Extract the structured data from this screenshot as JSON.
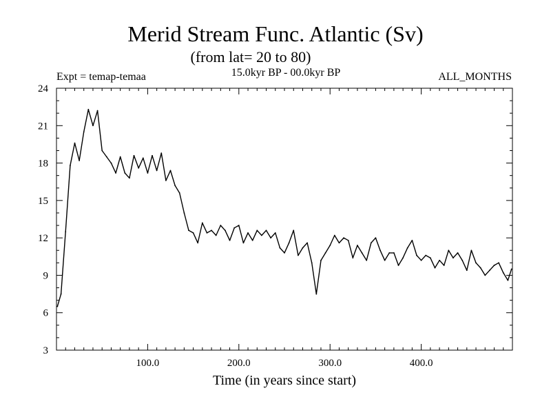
{
  "chart_data": {
    "type": "line",
    "title": "Merid Stream Func. Atlantic (Sv)",
    "subtitle": "(from lat= 20 to 80)",
    "experiment": "Expt = temap-temaa",
    "period": "15.0kyr BP - 00.0kyr BP",
    "months": "ALL_MONTHS",
    "xlabel": "Time (in years since start)",
    "ylabel": "",
    "xlim": [
      0,
      500
    ],
    "ylim": [
      3,
      24
    ],
    "x_ticks": [
      100,
      200,
      300,
      400
    ],
    "x_tick_labels": [
      "100.0",
      "200.0",
      "300.0",
      "400.0"
    ],
    "y_ticks": [
      3,
      6,
      9,
      12,
      15,
      18,
      21,
      24
    ],
    "y_tick_labels": [
      "3",
      "6",
      "9",
      "12",
      "15",
      "18",
      "21",
      "24"
    ],
    "grid": false,
    "line_color": "#000000",
    "series": [
      {
        "x": [
          1,
          5,
          10,
          15,
          20,
          25,
          30,
          35,
          40,
          45,
          50,
          55,
          60,
          65,
          70,
          75,
          80,
          85,
          90,
          95,
          100,
          105,
          110,
          115,
          120,
          125,
          130,
          135,
          140,
          145,
          150,
          155,
          160,
          165,
          170,
          175,
          180,
          185,
          190,
          195,
          200,
          205,
          210,
          215,
          220,
          225,
          230,
          235,
          240,
          245,
          250,
          255,
          260,
          265,
          270,
          275,
          280,
          285,
          290,
          295,
          300,
          305,
          310,
          315,
          320,
          325,
          330,
          335,
          340,
          345,
          350,
          355,
          360,
          365,
          370,
          375,
          380,
          385,
          390,
          395,
          400,
          405,
          410,
          415,
          420,
          425,
          430,
          435,
          440,
          445,
          450,
          455,
          460,
          465,
          470,
          475,
          480,
          485,
          490,
          495,
          499
        ],
        "values": [
          6.5,
          7.5,
          12.5,
          17.8,
          19.6,
          18.2,
          20.5,
          22.3,
          21.0,
          22.2,
          19.0,
          18.5,
          18.0,
          17.2,
          18.5,
          17.2,
          16.8,
          18.6,
          17.6,
          18.4,
          17.2,
          18.6,
          17.4,
          18.8,
          16.6,
          17.4,
          16.2,
          15.6,
          14.0,
          12.6,
          12.4,
          11.6,
          13.2,
          12.4,
          12.6,
          12.2,
          13.0,
          12.6,
          11.8,
          12.8,
          13.0,
          11.6,
          12.4,
          11.8,
          12.6,
          12.2,
          12.6,
          12.0,
          12.4,
          11.2,
          10.8,
          11.6,
          12.6,
          10.6,
          11.2,
          11.6,
          10.0,
          7.5,
          10.2,
          10.8,
          11.4,
          12.2,
          11.6,
          12.0,
          11.8,
          10.4,
          11.4,
          10.8,
          10.2,
          11.6,
          12.0,
          11.0,
          10.2,
          10.8,
          10.8,
          9.8,
          10.4,
          11.2,
          11.8,
          10.6,
          10.2,
          10.6,
          10.4,
          9.6,
          10.2,
          9.8,
          11.0,
          10.4,
          10.8,
          10.2,
          9.4,
          11.0,
          10.0,
          9.6,
          9.0,
          9.4,
          9.8,
          10.0,
          9.2,
          8.6,
          9.5
        ]
      }
    ]
  }
}
